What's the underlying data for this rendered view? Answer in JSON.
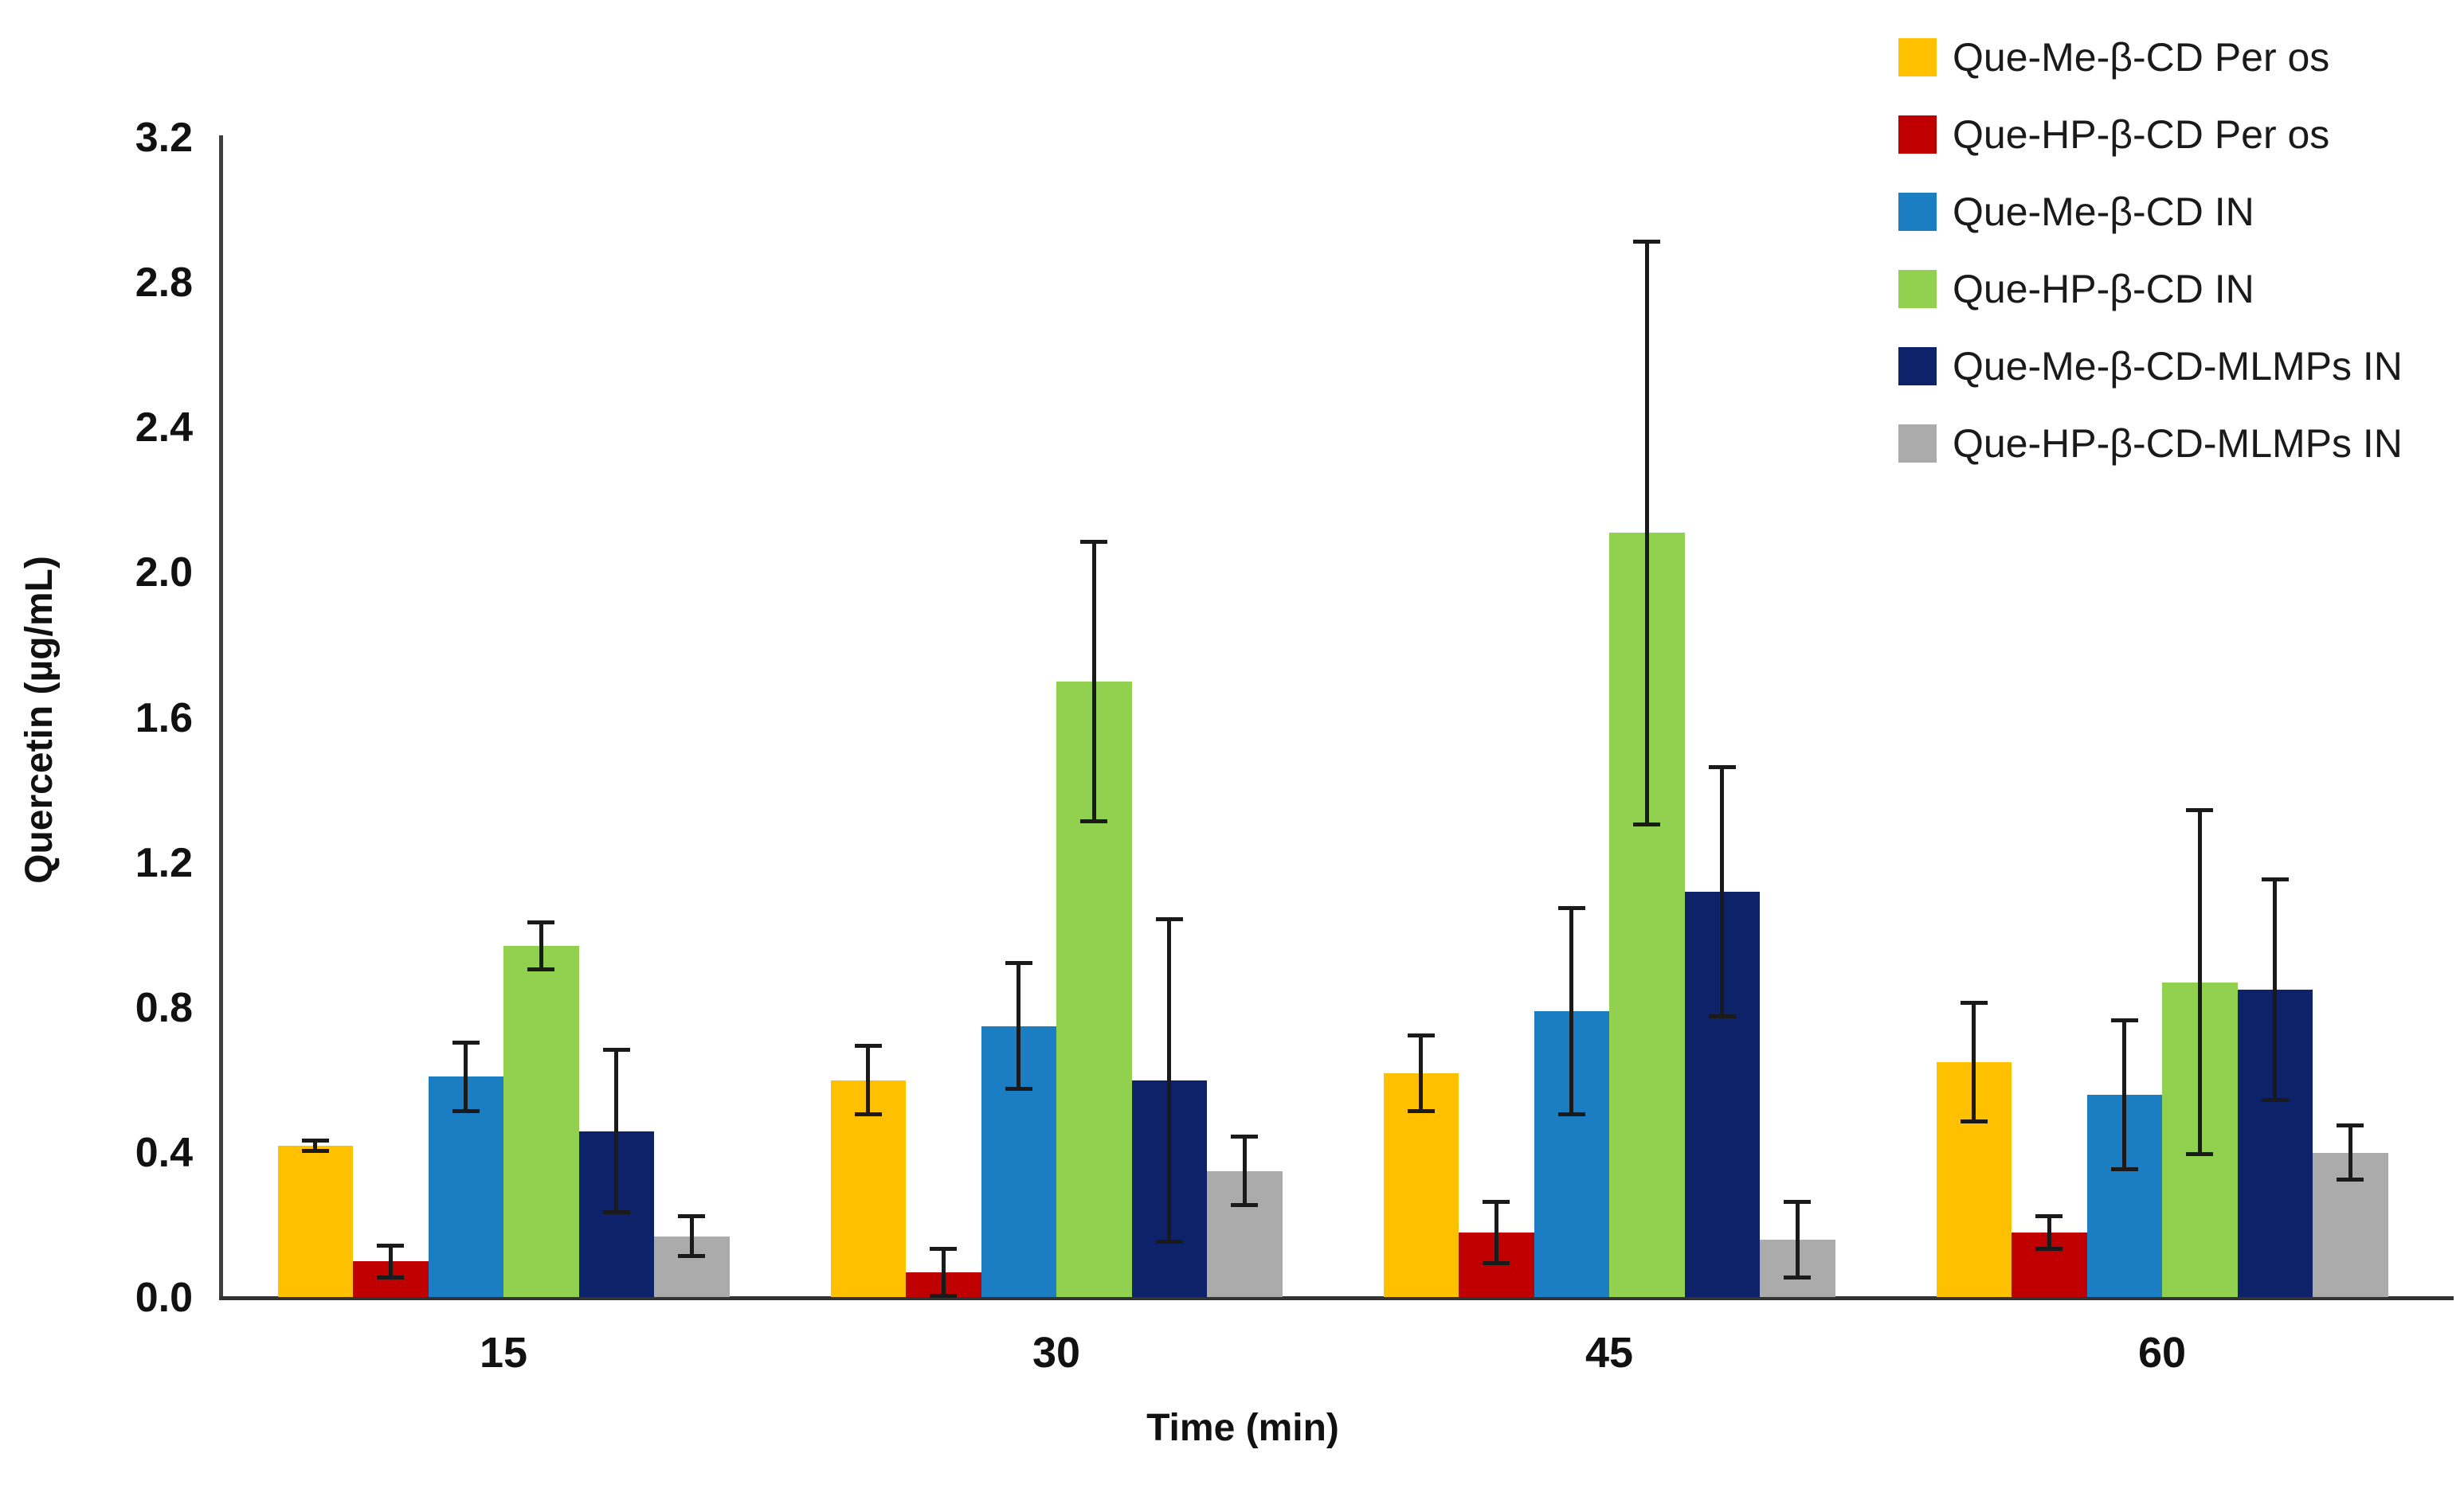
{
  "chart_data": {
    "type": "bar",
    "title": "",
    "xlabel": "Time (min)",
    "ylabel": "Quercetin (µg/mL)",
    "ylim": [
      0.0,
      3.2
    ],
    "ytick_step": 0.4,
    "ytick_labels": [
      "0.0",
      "0.4",
      "0.8",
      "1.2",
      "1.6",
      "2.0",
      "2.4",
      "2.8",
      "3.2"
    ],
    "grid": false,
    "legend_position": "top-right",
    "error_bars": true,
    "axis_color": "#3f3f3f",
    "error_bar_color": "#1a1a1a",
    "categories": [
      "15",
      "30",
      "45",
      "60"
    ],
    "series": [
      {
        "name": "Que-Me-β-CD Per os",
        "color": "#FFC000",
        "values": [
          0.42,
          0.6,
          0.62,
          0.65
        ],
        "errors": [
          0.02,
          0.1,
          0.11,
          0.17
        ]
      },
      {
        "name": "Que-HP-β-CD Per os",
        "color": "#C00000",
        "values": [
          0.1,
          0.07,
          0.18,
          0.18
        ],
        "errors": [
          0.05,
          0.07,
          0.09,
          0.05
        ]
      },
      {
        "name": "Que-Me-β-CD IN",
        "color": "#1B7EC3",
        "values": [
          0.61,
          0.75,
          0.79,
          0.56
        ],
        "errors": [
          0.1,
          0.18,
          0.29,
          0.21
        ]
      },
      {
        "name": "Que-HP-β-CD IN",
        "color": "#92D050",
        "values": [
          0.97,
          1.7,
          2.11,
          0.87
        ],
        "errors": [
          0.07,
          0.39,
          0.81,
          0.48
        ]
      },
      {
        "name": "Que-Me-β-CD-MLMPs IN",
        "color": "#0D2268",
        "values": [
          0.46,
          0.6,
          1.12,
          0.85
        ],
        "errors": [
          0.23,
          0.45,
          0.35,
          0.31
        ]
      },
      {
        "name": "Que-HP-β-CD-MLMPs IN",
        "color": "#ABABAB",
        "values": [
          0.17,
          0.35,
          0.16,
          0.4
        ],
        "errors": [
          0.06,
          0.1,
          0.11,
          0.08
        ]
      }
    ]
  }
}
